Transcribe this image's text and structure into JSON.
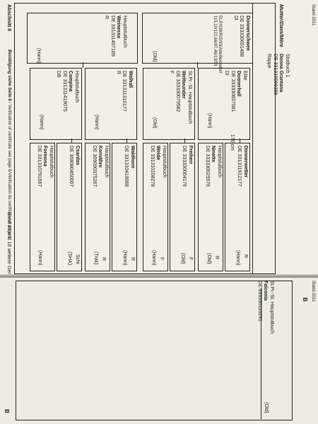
{
  "left_page": {
    "stand": "Stand 2011",
    "heading": "Mutter/Dam/Mère",
    "footer_section": "Abschnitt II",
    "footer_confirm": "Bestätigung siehe Seite 6",
    "footer_verif": " / Verification of certificate see page 6/Vérification du certificat voir page 6",
    "footer_band": "Band 43 und 16 weitere Generationen",
    "dam": {
      "reg": "Stutbuch 1",
      "name": "Donna Grantana",
      "ueln": "DE 331316599398",
      "colour": "Rappe"
    },
    "gen1": [
      {
        "name": "Donnerschwee",
        "ueln": "DE 333330651488",
        "sex": "Dl",
        "extra": "ELP/039/R/S/93/Adelheidsdorf",
        "extra2": "115,10/121,66/97,46/13/53",
        "breed": "(Old)"
      },
      {
        "reg": "Hauptstutbuch",
        "name": "Weinessa",
        "ueln": "DE 331311407189",
        "sex": "R",
        "breed": "(Hann)"
      }
    ],
    "gen2": [
      {
        "name": "Elite",
        "name2": "Donnerhall",
        "ueln": "DE 333330837081",
        "sex": "Dl",
        "breed": "(Hann)"
      },
      {
        "reg": "St.Pr.-St.  Hauptstutbuch",
        "name": "Weltwunder",
        "ueln": "DE 333330079582",
        "sex": "F",
        "breed": "(Old)"
      },
      {
        "name": "Walhall",
        "ueln": "DE 331311315177",
        "sex": "R",
        "breed": "(Hann)"
      },
      {
        "reg": "Hauptstutbuch",
        "name": "Campina",
        "ueln": "DE 331311419075",
        "sex": "DB",
        "breed": "(Hann)"
      }
    ],
    "gen3": [
      {
        "name": "Donnerwetter",
        "ueln": "DE 331311912177",
        "sex": "R",
        "breed": "(Hann)",
        "extra": "170 cm"
      },
      {
        "reg": "Hauptstutbuch",
        "name": "Ninette",
        "ueln": "DE 333330025576",
        "sex": "R",
        "breed": "(Old)"
      },
      {
        "name": "Freiherr",
        "ueln": "DE 333330054176",
        "sex": "F",
        "breed": "(Old)"
      },
      {
        "reg": "Hauptstutbuch",
        "name": "Weide",
        "ueln": "DE 331310108278",
        "sex": "F",
        "breed": "(Hann)"
      },
      {
        "name": "Waldhorn",
        "ueln": "DE 331310419068",
        "sex": "R",
        "breed": "(Hann)"
      },
      {
        "reg": "Hauptstutbuch",
        "name": "Kornähre",
        "ueln": "DE 309090375267",
        "sex": "R",
        "breed": "(Trak)"
      },
      {
        "name": "Csardas",
        "ueln": "DE 308080450067",
        "sex": "Schi",
        "breed": "(SHA)"
      },
      {
        "reg": "Hauptstutbuch",
        "name": "Formosa",
        "ueln": "DE 331310791667",
        "sex": "R",
        "breed": "(Hann)"
      }
    ]
  },
  "right_page": {
    "stand": "Stand 2011",
    "section_letter": "B",
    "top_entry": {
      "reg": "St.Pr.-St.  Hauptstutbuch",
      "name": "Falconia",
      "ueln": "DE 333330110291",
      "breed": "(Old)"
    },
    "bottom_letter": "B"
  }
}
